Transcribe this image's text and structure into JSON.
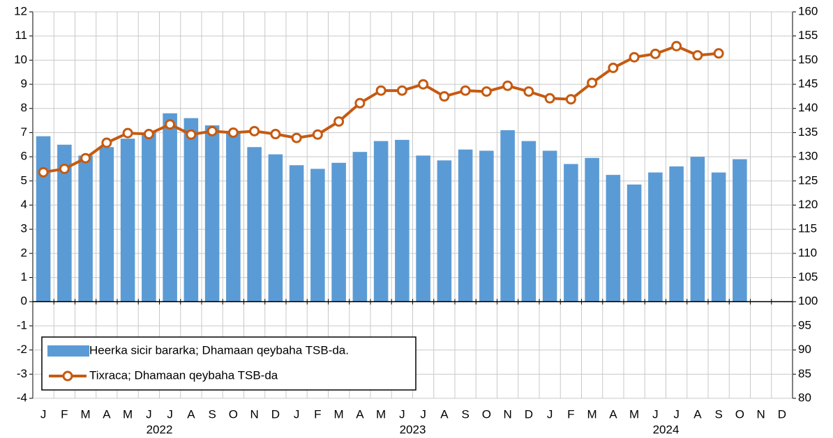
{
  "chart_data": {
    "type": "bar_line",
    "categories": [
      "J",
      "F",
      "M",
      "A",
      "M",
      "J",
      "J",
      "A",
      "S",
      "O",
      "N",
      "D",
      "J",
      "F",
      "M",
      "A",
      "M",
      "J",
      "J",
      "A",
      "S",
      "O",
      "N",
      "D",
      "J",
      "F",
      "M",
      "A",
      "M",
      "J",
      "J",
      "A",
      "S",
      "O",
      "N",
      "D"
    ],
    "years": [
      "2022",
      "2023",
      "2024"
    ],
    "series": [
      {
        "name": "Heerka sicir bararka; Dhamaan qeybaha TSB-da.",
        "type": "bar",
        "color": "#5b9bd5",
        "values": [
          6.85,
          6.5,
          6.05,
          6.4,
          6.75,
          7.0,
          7.8,
          7.6,
          7.3,
          7.0,
          6.4,
          6.1,
          5.65,
          5.5,
          5.75,
          6.2,
          6.65,
          6.7,
          6.05,
          5.85,
          6.3,
          6.25,
          7.1,
          6.65,
          6.25,
          5.7,
          5.95,
          5.25,
          4.85,
          5.35,
          5.6,
          6.0,
          5.35,
          5.9,
          null,
          null
        ]
      },
      {
        "name": "Tixraca; Dhamaan qeybaha TSB-da",
        "type": "line",
        "color": "#c55a11",
        "axis": "y2",
        "values": [
          126.8,
          127.5,
          129.7,
          132.9,
          134.9,
          134.7,
          136.7,
          134.6,
          135.3,
          135.0,
          135.3,
          134.7,
          133.9,
          134.6,
          137.3,
          141.1,
          143.7,
          143.7,
          145.0,
          142.5,
          143.7,
          143.5,
          144.7,
          143.5,
          142.1,
          141.9,
          145.3,
          148.4,
          150.6,
          151.3,
          152.9,
          151.0,
          151.4,
          null,
          null,
          null
        ]
      }
    ],
    "ylim": [
      -4,
      12
    ],
    "yticks": [
      -4,
      -3,
      -2,
      -1,
      0,
      1,
      2,
      3,
      4,
      5,
      6,
      7,
      8,
      9,
      10,
      11,
      12
    ],
    "y2lim": [
      80,
      160
    ],
    "y2ticks": [
      80,
      85,
      90,
      95,
      100,
      105,
      110,
      115,
      120,
      125,
      130,
      135,
      140,
      145,
      150,
      155,
      160
    ],
    "grid": true,
    "legend": "bottom-left"
  }
}
